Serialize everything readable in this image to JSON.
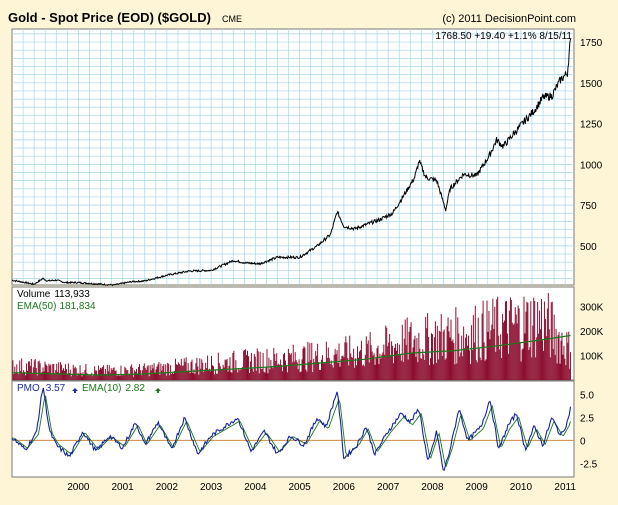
{
  "header": {
    "title": "Gold - Spot Price (EOD) ($GOLD)",
    "exchange": "CME",
    "copyright": "(c) 2011 DecisionPoint.com",
    "quote": "1768.50  +19.40  +1.1%  8/15/11"
  },
  "volume_panel": {
    "volume_label": "Volume",
    "volume_value": "113,933",
    "ema_label": "EMA(50)",
    "ema_value": "181,834"
  },
  "pmo_panel": {
    "pmo_label": "PMO",
    "pmo_value": "3.57",
    "ema_label": "EMA(10)",
    "ema_value": "2.82"
  },
  "colors": {
    "background": "#fdf5d6",
    "plot_bg": "#ffffff",
    "grid": "#a7d6ec",
    "price_line": "#000000",
    "volume_bars": "#8c0f2f",
    "volume_ema": "#1a7a1a",
    "pmo_line": "#16239e",
    "pmo_zero": "#d08a3c",
    "label_blue": "#1f2da6",
    "label_green": "#1a7a1a"
  },
  "chart_data": [
    {
      "type": "line",
      "panel": "price",
      "x_ticks": [
        "2000",
        "2001",
        "2002",
        "2003",
        "2004",
        "2005",
        "2006",
        "2007",
        "2008",
        "2009",
        "2010",
        "2011"
      ],
      "y_ticks": [
        500,
        750,
        1000,
        1250,
        1500,
        1750
      ],
      "ylim": [
        260,
        1830
      ],
      "grid": true,
      "x": [
        1999.0,
        1999.5,
        1999.7,
        1999.8,
        2000.0,
        2000.2,
        2000.5,
        2001.0,
        2001.3,
        2001.7,
        2002.0,
        2002.5,
        2003.0,
        2003.5,
        2004.0,
        2004.3,
        2004.6,
        2005.0,
        2005.5,
        2005.9,
        2006.2,
        2006.35,
        2006.5,
        2006.75,
        2007.0,
        2007.3,
        2007.6,
        2007.9,
        2008.1,
        2008.2,
        2008.35,
        2008.6,
        2008.8,
        2008.9,
        2009.2,
        2009.5,
        2009.8,
        2009.95,
        2010.1,
        2010.5,
        2010.8,
        2011.0,
        2011.2,
        2011.4,
        2011.55,
        2011.62
      ],
      "y": [
        290,
        265,
        300,
        285,
        290,
        275,
        275,
        265,
        260,
        280,
        285,
        320,
        345,
        350,
        410,
        395,
        390,
        430,
        430,
        500,
        570,
        710,
        620,
        605,
        630,
        660,
        700,
        830,
        920,
        1020,
        920,
        900,
        720,
        850,
        940,
        930,
        1060,
        1150,
        1110,
        1240,
        1330,
        1410,
        1420,
        1520,
        1560,
        1768.5
      ]
    },
    {
      "type": "bar",
      "panel": "volume",
      "y_ticks_labels": [
        "100K",
        "200K",
        "300K"
      ],
      "y_ticks": [
        100000,
        200000,
        300000
      ],
      "ylim": [
        0,
        380000
      ],
      "series": [
        {
          "name": "Volume",
          "x": [
            1999.0,
            2000.0,
            2001.0,
            2002.0,
            2003.0,
            2004.0,
            2005.0,
            2006.0,
            2007.0,
            2008.0,
            2009.0,
            2010.0,
            2011.0,
            2011.62
          ],
          "values": [
            55000,
            45000,
            35000,
            40000,
            55000,
            70000,
            80000,
            95000,
            110000,
            150000,
            170000,
            200000,
            230000,
            113933
          ]
        },
        {
          "name": "EMA(50)",
          "x": [
            1999.0,
            2000.0,
            2001.0,
            2002.0,
            2003.0,
            2004.0,
            2005.0,
            2006.0,
            2007.0,
            2008.0,
            2009.0,
            2010.0,
            2011.0,
            2011.62
          ],
          "values": [
            30000,
            25000,
            20000,
            25000,
            35000,
            45000,
            55000,
            70000,
            85000,
            110000,
            120000,
            140000,
            165000,
            181834
          ]
        }
      ]
    },
    {
      "type": "line",
      "panel": "pmo",
      "y_ticks": [
        -2.5,
        0,
        2.5,
        5.0
      ],
      "y_tick_labels": [
        "-2.5",
        "0",
        "2.5",
        "5.0"
      ],
      "ylim": [
        -4,
        6.5
      ],
      "series": [
        {
          "name": "PMO",
          "x": [
            1999.0,
            1999.3,
            1999.55,
            1999.7,
            1999.85,
            2000.0,
            2000.3,
            2000.6,
            2000.9,
            2001.2,
            2001.5,
            2001.8,
            2002.0,
            2002.3,
            2002.6,
            2002.9,
            2003.2,
            2003.5,
            2003.8,
            2004.1,
            2004.4,
            2004.7,
            2005.0,
            2005.3,
            2005.6,
            2005.9,
            2006.1,
            2006.35,
            2006.5,
            2006.8,
            2007.0,
            2007.2,
            2007.5,
            2007.8,
            2008.0,
            2008.2,
            2008.4,
            2008.6,
            2008.75,
            2008.9,
            2009.1,
            2009.3,
            2009.6,
            2009.8,
            2010.0,
            2010.2,
            2010.4,
            2010.6,
            2010.8,
            2011.0,
            2011.2,
            2011.4,
            2011.55,
            2011.62
          ],
          "values": [
            0.3,
            -1.0,
            0.8,
            6.0,
            1.0,
            -0.5,
            -1.8,
            1.0,
            -1.2,
            0.5,
            -0.8,
            2.0,
            -0.5,
            2.0,
            -1.0,
            2.5,
            -1.5,
            0.5,
            1.5,
            2.5,
            -1.2,
            1.0,
            -1.5,
            0.5,
            -0.5,
            2.5,
            1.5,
            5.5,
            -2.0,
            -0.5,
            1.5,
            -1.5,
            1.0,
            3.0,
            2.0,
            3.5,
            -2.5,
            1.0,
            -3.5,
            -1.0,
            3.5,
            0.0,
            1.5,
            4.5,
            -1.0,
            1.5,
            3.0,
            -1.0,
            1.5,
            -0.5,
            2.5,
            0.5,
            2.0,
            3.57
          ]
        },
        {
          "name": "EMA(10)",
          "x": [
            1999.0,
            2000.0,
            2001.0,
            2002.0,
            2003.0,
            2004.0,
            2005.0,
            2006.0,
            2007.0,
            2008.0,
            2009.0,
            2010.0,
            2011.0,
            2011.62
          ],
          "values": [
            0.2,
            0.5,
            -0.2,
            0.8,
            0.6,
            0.8,
            0.3,
            1.5,
            0.8,
            1.5,
            0.8,
            1.5,
            0.8,
            2.82
          ]
        }
      ]
    }
  ]
}
